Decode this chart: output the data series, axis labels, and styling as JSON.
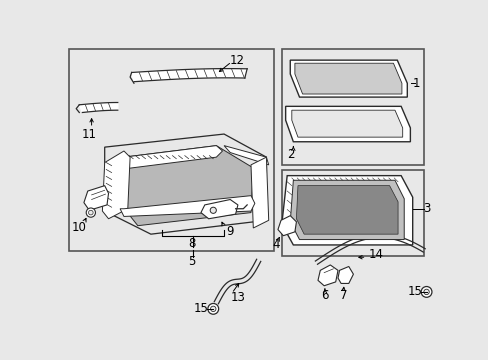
{
  "bg_color": "#e8e8e8",
  "box_bg": "#e8e8e8",
  "lc": "#2a2a2a",
  "white": "#ffffff",
  "figsize": [
    4.89,
    3.6
  ],
  "dpi": 100
}
